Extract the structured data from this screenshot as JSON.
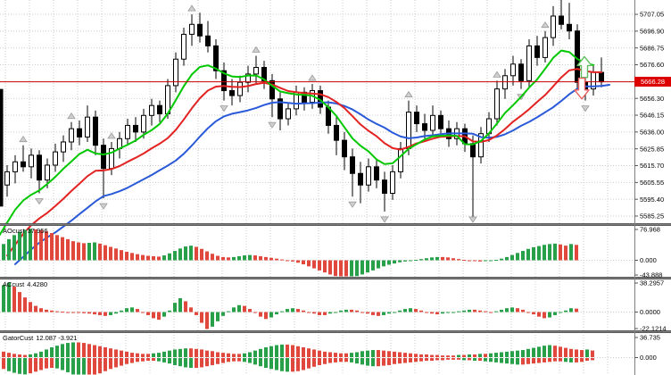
{
  "colors": {
    "up_candle": "#ffffff",
    "down_candle": "#000000",
    "candle_outline": "#000000",
    "lips_green": "#00c800",
    "teeth_red": "#e32222",
    "jaw_blue": "#2a5ada",
    "hist_green": "#28a04a",
    "hist_red": "#e0483e",
    "hline_red": "#cc0000",
    "price_tag_bg": "#dd0000",
    "grid": "#cbcbcb",
    "axis_line": "#808080",
    "axis_text": "#000000",
    "separator": "#7f7f7f",
    "fractal_gray": "#9a9a9a",
    "signal_up_green": "#5fbf5f",
    "signal_down_red": "#e86060"
  },
  "chart_data": {
    "type": "candlestick",
    "title": "",
    "price_axis": {
      "ticks": [
        "5707.05",
        "5696.90",
        "5686.75",
        "5676.60",
        "5666.45",
        "5656.30",
        "5646.15",
        "5636.00",
        "5625.85",
        "5615.70",
        "5605.55",
        "5595.40",
        "5585.25"
      ],
      "current": "5666.28",
      "current_value": 5666.28
    },
    "hline": {
      "price": 5666.28
    },
    "partial_left_candle": {
      "high": 5662,
      "low": 5591
    },
    "candles": [
      [
        5604,
        5616,
        5597,
        5612
      ],
      [
        5612,
        5622,
        5605,
        5618
      ],
      [
        5618,
        5628,
        5612,
        5615
      ],
      [
        5615,
        5626,
        5608,
        5622
      ],
      [
        5622,
        5625,
        5599,
        5607
      ],
      [
        5607,
        5620,
        5602,
        5616
      ],
      [
        5616,
        5629,
        5612,
        5624
      ],
      [
        5624,
        5634,
        5618,
        5630
      ],
      [
        5630,
        5642,
        5625,
        5638
      ],
      [
        5638,
        5643,
        5628,
        5633
      ],
      [
        5633,
        5652,
        5630,
        5645
      ],
      [
        5645,
        5649,
        5622,
        5628
      ],
      [
        5628,
        5632,
        5596,
        5614
      ],
      [
        5614,
        5630,
        5610,
        5626
      ],
      [
        5626,
        5636,
        5620,
        5632
      ],
      [
        5632,
        5644,
        5628,
        5640
      ],
      [
        5640,
        5645,
        5630,
        5636
      ],
      [
        5636,
        5650,
        5632,
        5646
      ],
      [
        5646,
        5656,
        5640,
        5652
      ],
      [
        5652,
        5655,
        5642,
        5647
      ],
      [
        5647,
        5668,
        5644,
        5664
      ],
      [
        5664,
        5684,
        5660,
        5680
      ],
      [
        5680,
        5699,
        5676,
        5695
      ],
      [
        5695,
        5707,
        5688,
        5701
      ],
      [
        5701,
        5708,
        5690,
        5694
      ],
      [
        5694,
        5703,
        5684,
        5688
      ],
      [
        5688,
        5692,
        5668,
        5673
      ],
      [
        5673,
        5678,
        5655,
        5661
      ],
      [
        5661,
        5668,
        5652,
        5658
      ],
      [
        5658,
        5670,
        5654,
        5666
      ],
      [
        5666,
        5676,
        5660,
        5671
      ],
      [
        5671,
        5682,
        5665,
        5675
      ],
      [
        5675,
        5679,
        5662,
        5667
      ],
      [
        5667,
        5671,
        5645,
        5656
      ],
      [
        5656,
        5660,
        5637,
        5644
      ],
      [
        5644,
        5654,
        5640,
        5650
      ],
      [
        5650,
        5664,
        5646,
        5660
      ],
      [
        5660,
        5663,
        5649,
        5654
      ],
      [
        5654,
        5665,
        5650,
        5661
      ],
      [
        5661,
        5664,
        5647,
        5651
      ],
      [
        5651,
        5655,
        5635,
        5640
      ],
      [
        5640,
        5645,
        5622,
        5631
      ],
      [
        5631,
        5636,
        5613,
        5621
      ],
      [
        5621,
        5626,
        5597,
        5611
      ],
      [
        5611,
        5618,
        5593,
        5604
      ],
      [
        5604,
        5620,
        5600,
        5615
      ],
      [
        5615,
        5619,
        5602,
        5607
      ],
      [
        5607,
        5612,
        5588,
        5599
      ],
      [
        5599,
        5616,
        5595,
        5612
      ],
      [
        5612,
        5630,
        5608,
        5626
      ],
      [
        5626,
        5655,
        5622,
        5648
      ],
      [
        5648,
        5652,
        5636,
        5641
      ],
      [
        5641,
        5647,
        5632,
        5637
      ],
      [
        5637,
        5652,
        5634,
        5646
      ],
      [
        5646,
        5649,
        5633,
        5638
      ],
      [
        5638,
        5643,
        5627,
        5632
      ],
      [
        5632,
        5642,
        5628,
        5638
      ],
      [
        5638,
        5641,
        5624,
        5629
      ],
      [
        5629,
        5634,
        5583,
        5621
      ],
      [
        5621,
        5639,
        5617,
        5635
      ],
      [
        5635,
        5648,
        5630,
        5644
      ],
      [
        5644,
        5667,
        5640,
        5662
      ],
      [
        5662,
        5674,
        5656,
        5670
      ],
      [
        5670,
        5682,
        5664,
        5677
      ],
      [
        5677,
        5680,
        5662,
        5667
      ],
      [
        5667,
        5692,
        5663,
        5688
      ],
      [
        5688,
        5694,
        5676,
        5681
      ],
      [
        5681,
        5697,
        5678,
        5693
      ],
      [
        5693,
        5712,
        5688,
        5706
      ],
      [
        5706,
        5716,
        5698,
        5701
      ],
      [
        5701,
        5714,
        5692,
        5697
      ],
      [
        5697,
        5701,
        5660,
        5666
      ],
      [
        5666,
        5672,
        5655,
        5662
      ],
      [
        5662,
        5676,
        5658,
        5672
      ],
      [
        5672,
        5681,
        5663,
        5666.3
      ]
    ],
    "alligator": {
      "lips": {
        "period": 5,
        "shift": -1,
        "seed": 5565
      },
      "teeth": {
        "period": 8,
        "shift": 0,
        "seed": 5555
      },
      "jaw": {
        "period": 13,
        "shift": 1,
        "seed": 5552
      }
    },
    "fractals": {
      "up": [
        2,
        8,
        13,
        23,
        31,
        38,
        50,
        61,
        67
      ],
      "down": [
        4,
        12,
        27,
        33,
        43,
        47,
        58,
        64,
        72
      ]
    },
    "signals": [
      {
        "dir": "up",
        "candle_index": 72,
        "tip_price": 5681.5,
        "base_price": 5669
      },
      {
        "dir": "down",
        "candle_index": 72,
        "tip_price": 5656,
        "base_price": 5668.5
      }
    ],
    "panels": [
      {
        "name": "AOcust",
        "value_label": "37.956",
        "axis_labels": [
          "76.968",
          "0.000",
          "-43.888"
        ],
        "values": [
          40,
          52,
          62,
          70,
          75,
          76.97,
          76,
          74,
          71,
          67,
          62,
          57,
          52,
          47,
          44,
          42,
          43,
          44,
          41,
          37,
          33,
          29,
          25,
          21,
          18,
          15,
          13,
          11,
          10,
          9,
          12,
          17,
          23,
          29,
          34,
          36,
          33,
          28,
          22,
          16,
          11,
          8,
          7,
          8,
          10,
          12,
          13,
          12,
          10,
          8,
          6,
          4,
          2,
          0,
          -3,
          -6,
          -10,
          -15,
          -20,
          -25,
          -30,
          -35,
          -39,
          -42,
          -43.9,
          -42,
          -39,
          -35,
          -30,
          -25,
          -20,
          -15,
          -11,
          -8,
          -5,
          -3,
          -1,
          1,
          3,
          5,
          7,
          8,
          8,
          7,
          5,
          3,
          1,
          -1,
          -2,
          -3,
          -2,
          -1,
          1,
          4,
          8,
          13,
          18,
          23,
          28,
          32,
          35,
          38,
          40,
          41,
          39,
          36,
          40,
          37.956
        ]
      },
      {
        "name": "ACcust",
        "value_label": "4.4280",
        "axis_labels": [
          "38.2957",
          "0.0000",
          "-22.1214"
        ],
        "values": [
          35,
          38.3,
          33,
          26,
          19,
          13,
          8,
          5,
          3,
          2,
          1,
          0.5,
          0,
          -0.5,
          -1,
          -1.5,
          -2,
          -3,
          -4,
          -5,
          -4,
          -2,
          2,
          5,
          6,
          4,
          0,
          -4,
          -8,
          -10,
          -6,
          2,
          12,
          18,
          14,
          6,
          -4,
          -14,
          -22.1,
          -19,
          -12,
          -5,
          1,
          6,
          9,
          8,
          4,
          -1,
          -6,
          -9,
          -7,
          -3,
          1,
          4,
          5,
          4,
          2,
          0,
          -2,
          -4,
          -4,
          -2,
          0,
          2,
          3,
          3,
          2,
          0,
          -2,
          -4,
          -5,
          -4,
          -2,
          0,
          2,
          4,
          5,
          4,
          2,
          0,
          -2,
          -3,
          -2,
          -1,
          0,
          1,
          2,
          3,
          3,
          2,
          1,
          0,
          1,
          3,
          5,
          6,
          5,
          3,
          0,
          -3,
          -6,
          -8,
          -7,
          -4,
          -1,
          2,
          5,
          4.428
        ]
      },
      {
        "name": "GatorCust",
        "value_label": "12.087 -3.921",
        "axis_labels": [
          "36.735",
          "0.000"
        ],
        "upper": [
          10,
          8,
          6,
          5,
          4,
          5,
          7,
          10,
          14,
          18,
          21,
          24,
          26,
          27,
          27,
          26,
          24,
          22,
          20,
          18,
          16,
          14,
          12,
          10,
          8,
          7,
          6,
          6,
          7,
          8,
          10,
          12,
          14,
          15,
          16,
          16,
          15,
          14,
          12,
          11,
          9,
          8,
          7,
          6,
          6,
          7,
          9,
          12,
          15,
          18,
          20,
          22,
          23,
          23,
          22,
          20,
          18,
          16,
          14,
          12,
          10,
          9,
          8,
          7,
          7,
          8,
          9,
          11,
          12,
          13,
          13,
          12,
          11,
          10,
          9,
          8,
          7,
          6,
          5,
          5,
          4,
          4,
          3,
          3,
          3,
          4,
          4,
          5,
          5,
          6,
          6,
          7,
          8,
          9,
          10,
          11,
          12,
          13,
          15,
          17,
          19,
          21,
          22,
          21,
          19,
          17,
          15,
          14,
          13,
          14,
          12.087
        ],
        "lower": [
          -20,
          -24,
          -27,
          -29,
          -30,
          -28,
          -25,
          -22,
          -19,
          -18,
          -19,
          -22,
          -26,
          -30,
          -33,
          -36.7,
          -35,
          -32,
          -28,
          -24,
          -20,
          -17,
          -14,
          -11,
          -9,
          -7,
          -6,
          -5,
          -5,
          -6,
          -8,
          -10,
          -13,
          -15,
          -17,
          -18,
          -18,
          -17,
          -15,
          -13,
          -11,
          -9,
          -7,
          -6,
          -6,
          -7,
          -9,
          -12,
          -15,
          -18,
          -20,
          -22,
          -24,
          -25,
          -25,
          -24,
          -22,
          -19,
          -16,
          -13,
          -11,
          -9,
          -8,
          -7,
          -7,
          -8,
          -10,
          -12,
          -14,
          -15,
          -15,
          -14,
          -13,
          -11,
          -10,
          -9,
          -8,
          -7,
          -6,
          -5,
          -5,
          -4,
          -4,
          -3,
          -3,
          -3,
          -4,
          -4,
          -5,
          -5,
          -6,
          -7,
          -8,
          -9,
          -10,
          -11,
          -12,
          -12,
          -11,
          -10,
          -9,
          -8,
          -7,
          -6,
          -6,
          -7,
          -8,
          -8,
          -7,
          -5,
          -3.921
        ]
      }
    ]
  }
}
